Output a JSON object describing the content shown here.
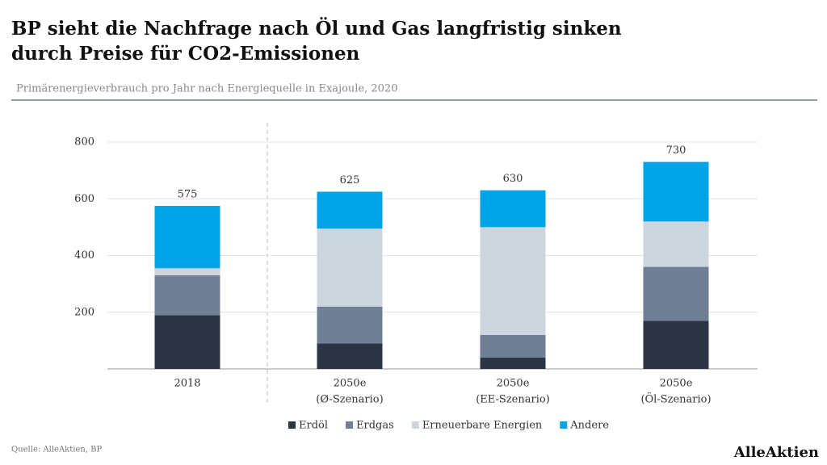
{
  "chart_data": {
    "type": "stacked_bar",
    "title": [
      "BP sieht die Nachfrage nach Öl und Gas langfristig sinken",
      "durch Preise für CO2-Emissionen"
    ],
    "subtitle": "Primärenergieverbrauch pro Jahr nach Energiequelle in Exajoule, 2020",
    "categories": [
      [
        "2018"
      ],
      [
        "2050e",
        "(Ø-Szenario)"
      ],
      [
        "2050e",
        "(EE-Szenario)"
      ],
      [
        "2050e",
        "(Öl-Szenario)"
      ]
    ],
    "series": [
      {
        "name": "Erdöl",
        "color": "#2b3544",
        "values": [
          190,
          90,
          40,
          170
        ]
      },
      {
        "name": "Erdgas",
        "color": "#6e7f96",
        "values": [
          140,
          130,
          80,
          190
        ]
      },
      {
        "name": "Erneuerbare Energien",
        "color": "#cdd5df",
        "values": [
          25,
          275,
          380,
          160
        ]
      },
      {
        "name": "Andere",
        "color": "#00a3e6",
        "values": [
          220,
          130,
          130,
          210
        ]
      }
    ],
    "totals": [
      575,
      625,
      630,
      730
    ],
    "ylim": [
      0,
      800
    ],
    "yticks": [
      200,
      400,
      600,
      800
    ],
    "grid": true,
    "source": "Quelle: AlleAktien, BP",
    "brand": "AlleAktien"
  }
}
